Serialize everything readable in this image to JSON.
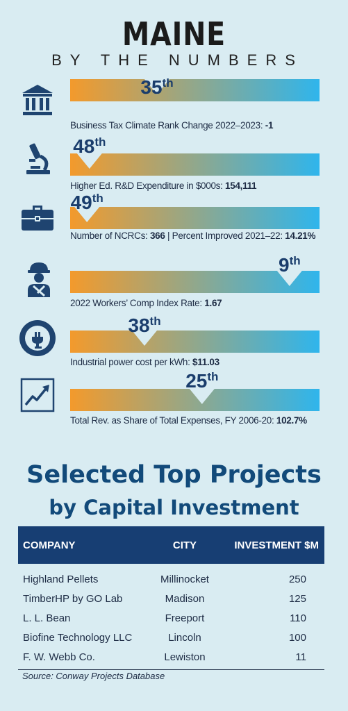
{
  "header": {
    "title": "MAINE",
    "subtitle": "BY THE NUMBERS"
  },
  "colors": {
    "bar_start": "#f39a2c",
    "bar_end": "#2fb5ec",
    "rank": "#1a3d6c",
    "icon": "#1f4470",
    "table_header": "#173e73"
  },
  "stats": [
    {
      "icon": "bank-icon",
      "rank": "35",
      "suffix": "th",
      "label": "Business Tax Climate Rank Change 2022–2023: ",
      "value": "-1",
      "pointer_position": 0.3
    },
    {
      "icon": "microscope-icon",
      "rank": "48",
      "suffix": "th",
      "label": "Higher Ed. R&D Expenditure in $000s: ",
      "value": "154,111",
      "pointer_position": 0.03
    },
    {
      "icon": "briefcase-icon",
      "rank": "49",
      "suffix": "th",
      "label": "Number of NCRCs: ",
      "value": "366",
      "label2": " | Percent Improved 2021–22: ",
      "value2": "14.21%",
      "pointer_position": 0.02
    },
    {
      "icon": "worker-icon",
      "rank": "9",
      "suffix": "th",
      "label": "2022 Workers’ Comp Index Rate: ",
      "value": "1.67",
      "pointer_position": 0.83
    },
    {
      "icon": "power-plug-icon",
      "rank": "38",
      "suffix": "th",
      "label": "Industrial power cost per kWh: ",
      "value": "$11.03",
      "pointer_position": 0.25
    },
    {
      "icon": "trend-chart-icon",
      "rank": "25",
      "suffix": "th",
      "label": "Total Rev. as Share of Total Expenses, FY 2006-20: ",
      "value": "102.7%",
      "pointer_position": 0.48
    }
  ],
  "projects": {
    "title": "Selected Top Projects",
    "subtitle": "by Capital Investment",
    "columns": {
      "company": "COMPANY",
      "city": "CITY",
      "investment": "INVESTMENT $M"
    },
    "rows": [
      {
        "company": "Highland Pellets",
        "city": "Millinocket",
        "investment": "250"
      },
      {
        "company": "TimberHP by GO Lab",
        "city": "Madison",
        "investment": "125"
      },
      {
        "company": "L. L. Bean",
        "city": "Freeport",
        "investment": "110"
      },
      {
        "company": "Biofine Technology LLC",
        "city": "Lincoln",
        "investment": "100"
      },
      {
        "company": "F. W. Webb Co.",
        "city": "Lewiston",
        "investment": "11"
      }
    ],
    "source": "Source: Conway Projects Database"
  }
}
